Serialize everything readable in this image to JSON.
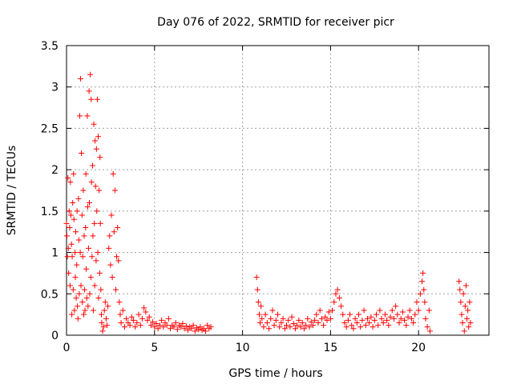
{
  "chart_data": {
    "type": "scatter",
    "title": "Day 076 of 2022, SRMTID for receiver picr",
    "xlabel": "GPS time / hours",
    "ylabel": "SRMTID / TECUs",
    "xlim": [
      0,
      24
    ],
    "ylim": [
      0,
      3.5
    ],
    "xticks": [
      0,
      5,
      10,
      15,
      20
    ],
    "xtick_labels": [
      "0",
      "5",
      "10",
      "15",
      "20"
    ],
    "yticks": [
      0,
      0.5,
      1,
      1.5,
      2,
      2.5,
      3,
      3.5
    ],
    "ytick_labels": [
      "0",
      "0.5",
      "1",
      "1.5",
      "2",
      "2.5",
      "3",
      "3.5"
    ],
    "grid": true,
    "marker": "+",
    "color": "#ff0000",
    "series": [
      {
        "name": "picr",
        "points": [
          [
            0.0,
            1.35
          ],
          [
            0.02,
            1.2
          ],
          [
            0.05,
            0.95
          ],
          [
            0.08,
            1.9
          ],
          [
            0.1,
            1.05
          ],
          [
            0.12,
            0.75
          ],
          [
            0.15,
            1.5
          ],
          [
            0.18,
            1.3
          ],
          [
            0.2,
            0.6
          ],
          [
            0.22,
            1.85
          ],
          [
            0.25,
            1.45
          ],
          [
            0.28,
            1.1
          ],
          [
            0.3,
            0.25
          ],
          [
            0.32,
            0.95
          ],
          [
            0.35,
            1.6
          ],
          [
            0.38,
            0.55
          ],
          [
            0.4,
            1.95
          ],
          [
            0.42,
            1.4
          ],
          [
            0.45,
            0.3
          ],
          [
            0.48,
            1.0
          ],
          [
            0.5,
            0.7
          ],
          [
            0.52,
            1.25
          ],
          [
            0.55,
            0.45
          ],
          [
            0.58,
            0.85
          ],
          [
            0.6,
            1.5
          ],
          [
            0.62,
            0.35
          ],
          [
            0.65,
            0.2
          ],
          [
            0.68,
            1.65
          ],
          [
            0.7,
            1.15
          ],
          [
            0.72,
            0.5
          ],
          [
            0.75,
            2.65
          ],
          [
            0.78,
            1.0
          ],
          [
            0.8,
            3.1
          ],
          [
            0.82,
            0.6
          ],
          [
            0.85,
            2.2
          ],
          [
            0.88,
            1.45
          ],
          [
            0.9,
            0.4
          ],
          [
            0.92,
            0.95
          ],
          [
            0.95,
            1.75
          ],
          [
            0.98,
            0.25
          ],
          [
            1.0,
            1.2
          ],
          [
            1.02,
            0.55
          ],
          [
            1.05,
            0.3
          ],
          [
            1.08,
            1.3
          ],
          [
            1.1,
            1.95
          ],
          [
            1.12,
            0.8
          ],
          [
            1.15,
            0.45
          ],
          [
            1.18,
            2.65
          ],
          [
            1.2,
            1.55
          ],
          [
            1.22,
            0.35
          ],
          [
            1.25,
            1.05
          ],
          [
            1.28,
            2.95
          ],
          [
            1.3,
            1.6
          ],
          [
            1.32,
            0.5
          ],
          [
            1.35,
            3.15
          ],
          [
            1.38,
            0.7
          ],
          [
            1.4,
            2.85
          ],
          [
            1.42,
            1.85
          ],
          [
            1.45,
            0.95
          ],
          [
            1.48,
            2.05
          ],
          [
            1.5,
            1.2
          ],
          [
            1.52,
            0.3
          ],
          [
            1.55,
            2.55
          ],
          [
            1.58,
            1.35
          ],
          [
            1.6,
            0.6
          ],
          [
            1.62,
            2.35
          ],
          [
            1.65,
            1.8
          ],
          [
            1.68,
            0.9
          ],
          [
            1.7,
            2.25
          ],
          [
            1.72,
            1.5
          ],
          [
            1.75,
            2.85
          ],
          [
            1.78,
            1.0
          ],
          [
            1.8,
            2.4
          ],
          [
            1.82,
            0.45
          ],
          [
            1.85,
            1.75
          ],
          [
            1.88,
            0.75
          ],
          [
            1.9,
            2.15
          ],
          [
            1.92,
            1.35
          ],
          [
            1.95,
            0.55
          ],
          [
            1.98,
            0.25
          ],
          [
            2.0,
            0.15
          ],
          [
            2.05,
            0.05
          ],
          [
            2.1,
            0.1
          ],
          [
            2.15,
            0.3
          ],
          [
            2.2,
            0.4
          ],
          [
            2.25,
            0.2
          ],
          [
            2.3,
            0.12
          ],
          [
            2.35,
            0.35
          ],
          [
            2.4,
            1.05
          ],
          [
            2.45,
            1.2
          ],
          [
            2.5,
            0.85
          ],
          [
            2.55,
            1.45
          ],
          [
            2.6,
            0.7
          ],
          [
            2.65,
            1.95
          ],
          [
            2.7,
            1.25
          ],
          [
            2.75,
            1.75
          ],
          [
            2.8,
            0.55
          ],
          [
            2.85,
            0.95
          ],
          [
            2.9,
            1.3
          ],
          [
            2.95,
            0.9
          ],
          [
            3.0,
            0.4
          ],
          [
            3.05,
            0.25
          ],
          [
            3.1,
            0.15
          ],
          [
            3.2,
            0.3
          ],
          [
            3.3,
            0.1
          ],
          [
            3.4,
            0.2
          ],
          [
            3.5,
            0.15
          ],
          [
            3.6,
            0.12
          ],
          [
            3.7,
            0.22
          ],
          [
            3.8,
            0.18
          ],
          [
            3.9,
            0.1
          ],
          [
            4.0,
            0.15
          ],
          [
            4.1,
            0.25
          ],
          [
            4.2,
            0.12
          ],
          [
            4.3,
            0.2
          ],
          [
            4.4,
            0.33
          ],
          [
            4.5,
            0.28
          ],
          [
            4.6,
            0.18
          ],
          [
            4.7,
            0.22
          ],
          [
            4.8,
            0.12
          ],
          [
            4.9,
            0.16
          ],
          [
            5.0,
            0.1
          ],
          [
            5.1,
            0.14
          ],
          [
            5.2,
            0.08
          ],
          [
            5.3,
            0.12
          ],
          [
            5.4,
            0.18
          ],
          [
            5.5,
            0.1
          ],
          [
            5.6,
            0.15
          ],
          [
            5.7,
            0.12
          ],
          [
            5.8,
            0.2
          ],
          [
            5.9,
            0.08
          ],
          [
            6.0,
            0.12
          ],
          [
            6.1,
            0.1
          ],
          [
            6.2,
            0.15
          ],
          [
            6.3,
            0.07
          ],
          [
            6.4,
            0.12
          ],
          [
            6.5,
            0.1
          ],
          [
            6.6,
            0.14
          ],
          [
            6.7,
            0.08
          ],
          [
            6.8,
            0.11
          ],
          [
            6.9,
            0.06
          ],
          [
            7.0,
            0.1
          ],
          [
            7.1,
            0.08
          ],
          [
            7.2,
            0.12
          ],
          [
            7.3,
            0.05
          ],
          [
            7.4,
            0.09
          ],
          [
            7.5,
            0.07
          ],
          [
            7.6,
            0.1
          ],
          [
            7.7,
            0.06
          ],
          [
            7.8,
            0.08
          ],
          [
            7.9,
            0.05
          ],
          [
            8.0,
            0.12
          ],
          [
            8.1,
            0.08
          ],
          [
            8.2,
            0.1
          ],
          [
            10.8,
            0.7
          ],
          [
            10.85,
            0.55
          ],
          [
            10.9,
            0.4
          ],
          [
            10.95,
            0.25
          ],
          [
            11.0,
            0.15
          ],
          [
            11.05,
            0.35
          ],
          [
            11.1,
            0.2
          ],
          [
            11.2,
            0.1
          ],
          [
            11.3,
            0.25
          ],
          [
            11.4,
            0.15
          ],
          [
            11.5,
            0.08
          ],
          [
            11.6,
            0.2
          ],
          [
            11.7,
            0.3
          ],
          [
            11.8,
            0.12
          ],
          [
            11.9,
            0.18
          ],
          [
            12.0,
            0.25
          ],
          [
            12.1,
            0.1
          ],
          [
            12.2,
            0.15
          ],
          [
            12.3,
            0.2
          ],
          [
            12.4,
            0.08
          ],
          [
            12.5,
            0.12
          ],
          [
            12.6,
            0.18
          ],
          [
            12.7,
            0.1
          ],
          [
            12.8,
            0.22
          ],
          [
            12.9,
            0.14
          ],
          [
            13.0,
            0.08
          ],
          [
            13.1,
            0.12
          ],
          [
            13.2,
            0.18
          ],
          [
            13.3,
            0.1
          ],
          [
            13.4,
            0.15
          ],
          [
            13.5,
            0.08
          ],
          [
            13.6,
            0.12
          ],
          [
            13.7,
            0.2
          ],
          [
            13.8,
            0.1
          ],
          [
            13.9,
            0.16
          ],
          [
            14.0,
            0.12
          ],
          [
            14.1,
            0.18
          ],
          [
            14.2,
            0.25
          ],
          [
            14.3,
            0.15
          ],
          [
            14.4,
            0.3
          ],
          [
            14.5,
            0.2
          ],
          [
            14.6,
            0.12
          ],
          [
            14.7,
            0.22
          ],
          [
            14.8,
            0.18
          ],
          [
            14.9,
            0.28
          ],
          [
            15.0,
            0.2
          ],
          [
            15.1,
            0.3
          ],
          [
            15.2,
            0.4
          ],
          [
            15.3,
            0.5
          ],
          [
            15.4,
            0.55
          ],
          [
            15.5,
            0.45
          ],
          [
            15.6,
            0.35
          ],
          [
            15.7,
            0.25
          ],
          [
            15.8,
            0.15
          ],
          [
            15.9,
            0.1
          ],
          [
            16.0,
            0.18
          ],
          [
            16.1,
            0.25
          ],
          [
            16.2,
            0.12
          ],
          [
            16.3,
            0.08
          ],
          [
            16.4,
            0.2
          ],
          [
            16.5,
            0.15
          ],
          [
            16.6,
            0.25
          ],
          [
            16.7,
            0.1
          ],
          [
            16.8,
            0.18
          ],
          [
            16.9,
            0.3
          ],
          [
            17.0,
            0.12
          ],
          [
            17.1,
            0.2
          ],
          [
            17.2,
            0.15
          ],
          [
            17.3,
            0.22
          ],
          [
            17.4,
            0.1
          ],
          [
            17.5,
            0.18
          ],
          [
            17.6,
            0.25
          ],
          [
            17.7,
            0.12
          ],
          [
            17.8,
            0.3
          ],
          [
            17.9,
            0.2
          ],
          [
            18.0,
            0.15
          ],
          [
            18.1,
            0.25
          ],
          [
            18.2,
            0.18
          ],
          [
            18.3,
            0.12
          ],
          [
            18.4,
            0.22
          ],
          [
            18.5,
            0.3
          ],
          [
            18.6,
            0.2
          ],
          [
            18.7,
            0.35
          ],
          [
            18.8,
            0.25
          ],
          [
            18.9,
            0.15
          ],
          [
            19.0,
            0.2
          ],
          [
            19.1,
            0.28
          ],
          [
            19.2,
            0.18
          ],
          [
            19.3,
            0.12
          ],
          [
            19.4,
            0.22
          ],
          [
            19.5,
            0.3
          ],
          [
            19.6,
            0.2
          ],
          [
            19.7,
            0.15
          ],
          [
            19.8,
            0.25
          ],
          [
            19.9,
            0.4
          ],
          [
            20.0,
            0.3
          ],
          [
            20.1,
            0.5
          ],
          [
            20.2,
            0.65
          ],
          [
            20.25,
            0.75
          ],
          [
            20.3,
            0.55
          ],
          [
            20.35,
            0.4
          ],
          [
            20.4,
            0.2
          ],
          [
            20.5,
            0.1
          ],
          [
            20.6,
            0.3
          ],
          [
            20.65,
            0.05
          ],
          [
            22.3,
            0.65
          ],
          [
            22.35,
            0.55
          ],
          [
            22.4,
            0.4
          ],
          [
            22.45,
            0.25
          ],
          [
            22.5,
            0.15
          ],
          [
            22.55,
            0.5
          ],
          [
            22.6,
            0.05
          ],
          [
            22.65,
            0.35
          ],
          [
            22.7,
            0.6
          ],
          [
            22.75,
            0.2
          ],
          [
            22.8,
            0.3
          ],
          [
            22.85,
            0.1
          ],
          [
            22.9,
            0.4
          ],
          [
            22.95,
            0.15
          ]
        ]
      }
    ]
  }
}
